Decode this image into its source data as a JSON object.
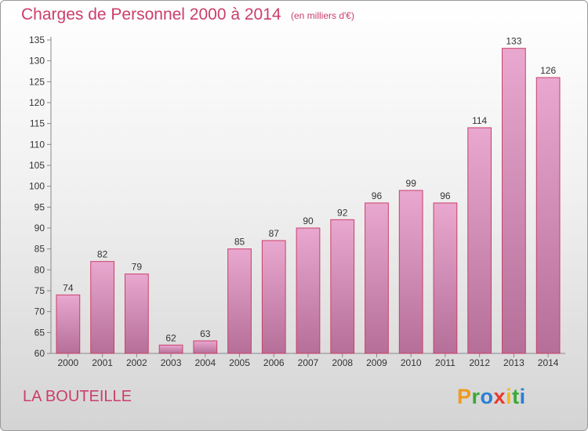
{
  "header": {
    "title": "Charges de Personnel 2000 à 2014",
    "subtitle": "(en milliers d'€)"
  },
  "footer": {
    "commune": "LA BOUTEILLE",
    "logo": {
      "letters": [
        "P",
        "r",
        "o",
        "x",
        "i",
        "t",
        "i"
      ],
      "colors": [
        "#f09a1c",
        "#3aa935",
        "#2a7fd4",
        "#e63a2c",
        "#f2b81c",
        "#3aa935",
        "#2a7fd4"
      ]
    }
  },
  "colors": {
    "accent": "#cc3e6a",
    "bar_top": "#e9a8cf",
    "bar_bottom": "#b56f98",
    "bar_stroke": "#cc3e6a"
  },
  "chart_data": {
    "type": "bar",
    "title": "Charges de Personnel 2000 à 2014",
    "subtitle": "(en milliers d'€)",
    "categories": [
      "2000",
      "2001",
      "2002",
      "2003",
      "2004",
      "2005",
      "2006",
      "2007",
      "2008",
      "2009",
      "2010",
      "2011",
      "2012",
      "2013",
      "2014"
    ],
    "values": [
      74,
      82,
      79,
      62,
      63,
      85,
      87,
      90,
      92,
      96,
      99,
      96,
      114,
      133,
      126
    ],
    "ylim": [
      60,
      135
    ],
    "yticks": [
      60,
      65,
      70,
      75,
      80,
      85,
      90,
      95,
      100,
      105,
      110,
      115,
      120,
      125,
      130,
      135
    ],
    "grid": false,
    "legend": "none"
  }
}
